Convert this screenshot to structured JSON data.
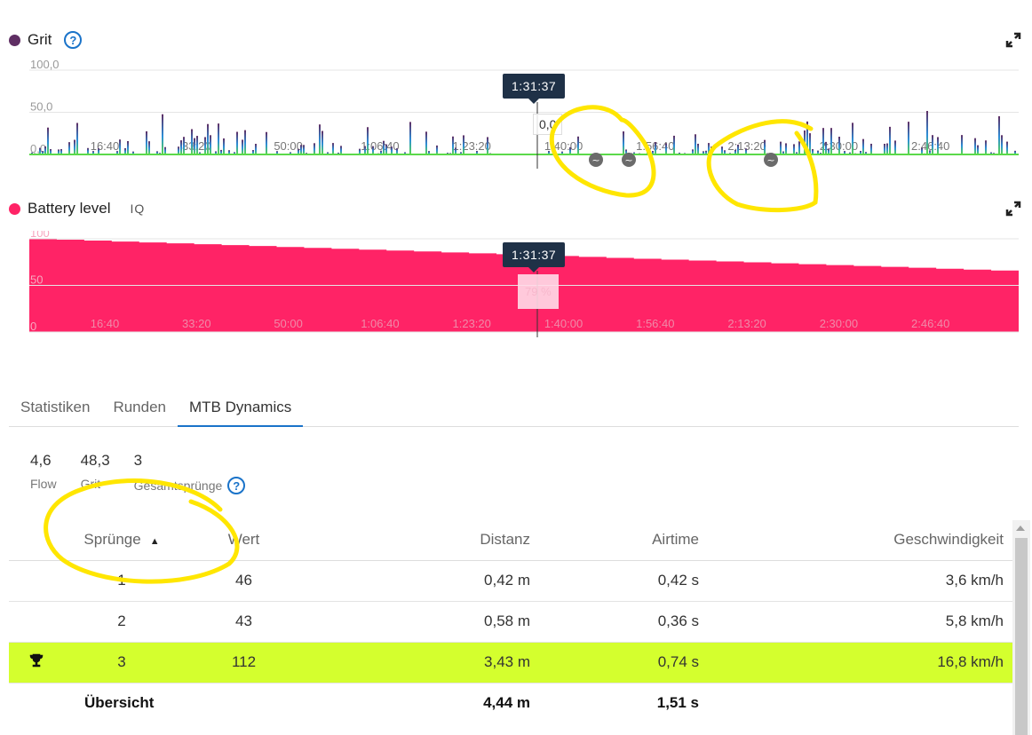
{
  "grit_chart": {
    "title": "Grit",
    "ytick_labels": [
      "100,0",
      "50,0",
      "0,0"
    ],
    "xtick_labels": [
      "16:40",
      "33:20",
      "50:00",
      "1:06:40",
      "1:23:20",
      "1:40:00",
      "1:56:40",
      "2:13:20",
      "2:30:00",
      "2:46:40"
    ],
    "tooltip_time": "1:31:37",
    "tooltip_value": "0,0",
    "colors": {
      "dot": "#5f2e63",
      "line": "#5bd94a",
      "spike_low": "#2c8ed8",
      "spike_high": "#5f2e63"
    }
  },
  "battery_chart": {
    "title": "Battery level",
    "badge": "IQ",
    "ytick_labels": [
      "100",
      "50",
      "0"
    ],
    "xtick_labels": [
      "16:40",
      "33:20",
      "50:00",
      "1:06:40",
      "1:23:20",
      "1:40:00",
      "1:56:40",
      "2:13:20",
      "2:30:00",
      "2:46:40"
    ],
    "tooltip_time": "1:31:37",
    "tooltip_value": "79 %",
    "colors": {
      "dot": "#ff2366",
      "fill": "#ff2366"
    }
  },
  "chart_data": [
    {
      "type": "bar",
      "title": "Grit",
      "ylim": [
        0,
        100
      ],
      "x_range": [
        "0:00",
        "3:00:00"
      ],
      "note_values": "spiky series, peaks mostly 10–60"
    },
    {
      "type": "area",
      "title": "Battery level",
      "ylim": [
        0,
        100
      ],
      "series": [
        {
          "x": [
            "0:00",
            "1:31:37",
            "3:00:00"
          ],
          "values": [
            100,
            79,
            65
          ]
        }
      ]
    }
  ],
  "tabs": [
    {
      "label": "Statistiken",
      "active": false
    },
    {
      "label": "Runden",
      "active": false
    },
    {
      "label": "MTB Dynamics",
      "active": true
    }
  ],
  "summary": [
    {
      "value": "4,6",
      "label": "Flow"
    },
    {
      "value": "48,3",
      "label": "Grit"
    },
    {
      "value": "3",
      "label": "Gesamtsprünge"
    }
  ],
  "table": {
    "headers": [
      "Sprünge",
      "Wert",
      "Distanz",
      "Airtime",
      "Geschwindigkeit"
    ],
    "rows": [
      {
        "jump": "1",
        "wert": "46",
        "distanz": "0,42 m",
        "airtime": "0,42 s",
        "speed": "3,6 km/h"
      },
      {
        "jump": "2",
        "wert": "43",
        "distanz": "0,58 m",
        "airtime": "0,36 s",
        "speed": "5,8 km/h"
      },
      {
        "jump": "3",
        "wert": "112",
        "distanz": "3,43 m",
        "airtime": "0,74 s",
        "speed": "16,8 km/h"
      }
    ],
    "total": {
      "label": "Übersicht",
      "distanz": "4,44 m",
      "airtime": "1,51 s"
    },
    "highlight_color": "#d4ff2e"
  }
}
